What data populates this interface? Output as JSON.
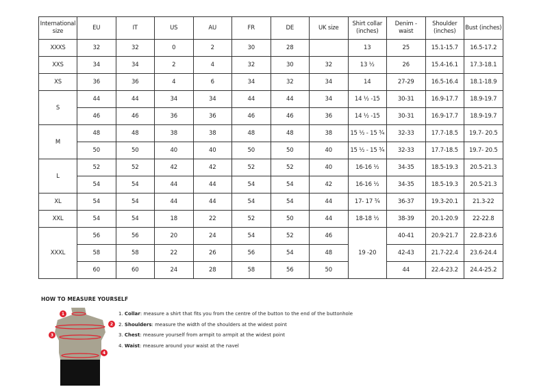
{
  "table": {
    "headers": [
      "International size",
      "EU",
      "IT",
      "US",
      "AU",
      "FR",
      "DE",
      "UK size",
      "Shirt collar (inches)",
      "Denim - waist",
      "Shoulder (inches)",
      "Bust (inches)"
    ],
    "rows": [
      [
        "XXXS",
        "32",
        "32",
        "0",
        "2",
        "30",
        "28",
        "",
        "13",
        "25",
        "15.1-15.7",
        "16.5-17.2"
      ],
      [
        "XXS",
        "34",
        "34",
        "2",
        "4",
        "32",
        "30",
        "32",
        "13 ½",
        "26",
        "15.4-16.1",
        "17.3-18.1"
      ],
      [
        "XS",
        "36",
        "36",
        "4",
        "6",
        "34",
        "32",
        "34",
        "14",
        "27-29",
        "16.5-16.4",
        "18.1-18.9"
      ],
      [
        "S",
        "44",
        "44",
        "34",
        "34",
        "44",
        "44",
        "34",
        "14 ½ -15",
        "30-31",
        "16.9-17.7",
        "18.9-19.7"
      ],
      [
        null,
        "46",
        "46",
        "36",
        "36",
        "46",
        "46",
        "36",
        "14 ½ -15",
        "30-31",
        "16.9-17.7",
        "18.9-19.7"
      ],
      [
        "M",
        "48",
        "48",
        "38",
        "38",
        "48",
        "48",
        "38",
        "15 ½ - 15 ¾",
        "32-33",
        "17.7-18.5",
        "19.7- 20.5"
      ],
      [
        null,
        "50",
        "50",
        "40",
        "40",
        "50",
        "50",
        "40",
        "15 ½ - 15 ¾",
        "32-33",
        "17.7-18.5",
        "19.7- 20.5"
      ],
      [
        "L",
        "52",
        "52",
        "42",
        "42",
        "52",
        "52",
        "40",
        "16-16 ½",
        "34-35",
        "18.5-19.3",
        "20.5-21.3"
      ],
      [
        null,
        "54",
        "54",
        "44",
        "44",
        "54",
        "54",
        "42",
        "16-16 ½",
        "34-35",
        "18.5-19.3",
        "20.5-21.3"
      ],
      [
        "XL",
        "54",
        "54",
        "44",
        "44",
        "54",
        "54",
        "44",
        "17- 17 ¾",
        "36-37",
        "19.3-20.1",
        "21.3-22"
      ],
      [
        "XXL",
        "54",
        "54",
        "18",
        "22",
        "52",
        "50",
        "44",
        "18-18 ½",
        "38-39",
        "20.1-20.9",
        "22-22.8"
      ],
      [
        "XXXL",
        "56",
        "56",
        "20",
        "24",
        "54",
        "52",
        "46",
        "19 -20",
        "40-41",
        "20.9-21.7",
        "22.8-23.6"
      ],
      [
        null,
        "58",
        "58",
        "22",
        "26",
        "56",
        "54",
        "48",
        null,
        "42-43",
        "21.7-22.4",
        "23.6-24.4"
      ],
      [
        null,
        "60",
        "60",
        "24",
        "28",
        "58",
        "56",
        "50",
        null,
        "44",
        "22.4-23.2",
        "24.4-25.2"
      ]
    ]
  },
  "howto": {
    "title": "HOW TO MEASURE YOURSELF",
    "steps": [
      {
        "num": "1.",
        "term": "Collar",
        "text": ": measure a shirt that fits you from the centre of the button to the end of the buttonhole"
      },
      {
        "num": "2.",
        "term": "Shoulders",
        "text": ": measure the width of the shoulders at the widest point"
      },
      {
        "num": "3.",
        "term": "Chest",
        "text": ": measure yourself from armpit to armpit at the widest point"
      },
      {
        "num": "4.",
        "term": "Waist",
        "text": ": measure around your waist at the navel"
      }
    ],
    "markers": [
      "1",
      "2",
      "3",
      "4"
    ]
  },
  "colors": {
    "accent": "#e0202e",
    "torso": "#a8a391",
    "shorts": "#111111"
  }
}
